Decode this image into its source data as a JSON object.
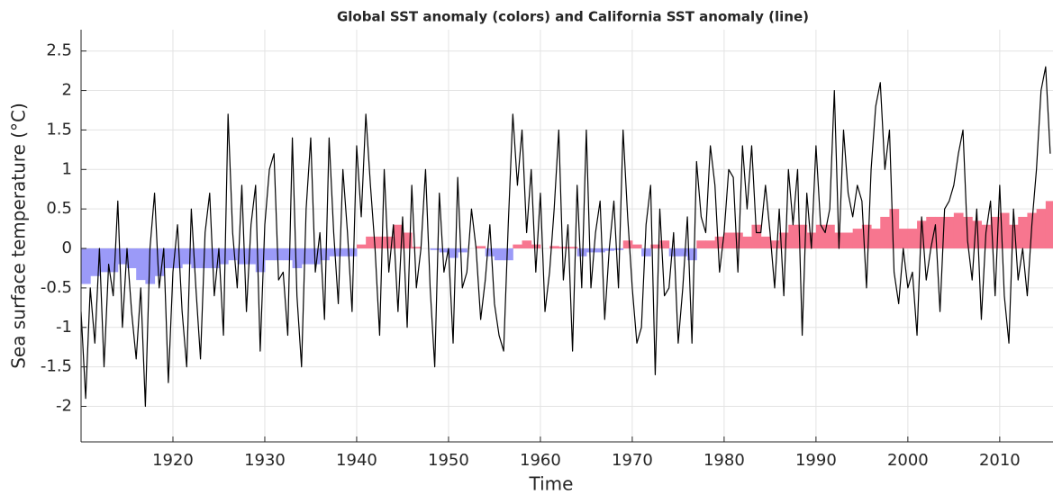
{
  "chart_data": {
    "type": "line",
    "title": "Global SST anomaly (colors) and California SST anomaly (line)",
    "xlabel": "Time",
    "ylabel": "Sea surface temperature (°C)",
    "xlim": [
      1910.0,
      2015.8
    ],
    "ylim": [
      -2.45,
      2.77
    ],
    "xticks": [
      1920,
      1930,
      1940,
      1950,
      1960,
      1970,
      1980,
      1990,
      2000,
      2010
    ],
    "yticks": [
      -2,
      -1.5,
      -1,
      -0.5,
      0,
      0.5,
      1,
      1.5,
      2,
      2.5
    ],
    "grid": true,
    "series": [
      {
        "color": "#f7768f",
        "negative_color": "#9b9af8",
        "x": [
          1910,
          1911,
          1912,
          1913,
          1914,
          1915,
          1916,
          1917,
          1918,
          1919,
          1920,
          1921,
          1922,
          1923,
          1924,
          1925,
          1926,
          1927,
          1928,
          1929,
          1930,
          1931,
          1932,
          1933,
          1934,
          1935,
          1936,
          1937,
          1938,
          1939,
          1940,
          1941,
          1942,
          1943,
          1944,
          1945,
          1946,
          1947,
          1948,
          1949,
          1950,
          1951,
          1952,
          1953,
          1954,
          1955,
          1956,
          1957,
          1958,
          1959,
          1960,
          1961,
          1962,
          1963,
          1964,
          1965,
          1966,
          1967,
          1968,
          1969,
          1970,
          1971,
          1972,
          1973,
          1974,
          1975,
          1976,
          1977,
          1978,
          1979,
          1980,
          1981,
          1982,
          1983,
          1984,
          1985,
          1986,
          1987,
          1988,
          1989,
          1990,
          1991,
          1992,
          1993,
          1994,
          1995,
          1996,
          1997,
          1998,
          1999,
          2000,
          2001,
          2002,
          2003,
          2004,
          2005,
          2006,
          2007,
          2008,
          2009,
          2010,
          2011,
          2012,
          2013,
          2014,
          2015
        ],
        "values": [
          -0.45,
          -0.35,
          -0.3,
          -0.3,
          -0.2,
          -0.25,
          -0.4,
          -0.45,
          -0.35,
          -0.25,
          -0.25,
          -0.2,
          -0.25,
          -0.25,
          -0.25,
          -0.2,
          -0.15,
          -0.2,
          -0.2,
          -0.3,
          -0.15,
          -0.15,
          -0.15,
          -0.25,
          -0.2,
          -0.2,
          -0.15,
          -0.1,
          -0.1,
          -0.1,
          0.05,
          0.15,
          0.15,
          0.15,
          0.3,
          0.2,
          0.02,
          0.0,
          -0.02,
          -0.05,
          -0.12,
          -0.05,
          0.0,
          0.03,
          -0.1,
          -0.15,
          -0.15,
          0.05,
          0.1,
          0.05,
          0.0,
          0.03,
          0.02,
          0.02,
          -0.1,
          -0.05,
          -0.05,
          -0.03,
          -0.02,
          0.1,
          0.05,
          -0.1,
          0.05,
          0.1,
          -0.1,
          -0.1,
          -0.15,
          0.1,
          0.1,
          0.15,
          0.2,
          0.2,
          0.15,
          0.3,
          0.15,
          0.1,
          0.2,
          0.3,
          0.3,
          0.2,
          0.3,
          0.3,
          0.2,
          0.2,
          0.25,
          0.3,
          0.25,
          0.4,
          0.5,
          0.25,
          0.25,
          0.35,
          0.4,
          0.4,
          0.4,
          0.45,
          0.4,
          0.35,
          0.3,
          0.4,
          0.45,
          0.3,
          0.4,
          0.45,
          0.5,
          0.6
        ]
      },
      {
        "color": "#000000",
        "x": [
          1910,
          1910.5,
          1911,
          1911.5,
          1912,
          1912.5,
          1913,
          1913.5,
          1914,
          1914.5,
          1915,
          1915.5,
          1916,
          1916.5,
          1917,
          1917.5,
          1918,
          1918.5,
          1919,
          1919.5,
          1920,
          1920.5,
          1921,
          1921.5,
          1922,
          1922.5,
          1923,
          1923.5,
          1924,
          1924.5,
          1925,
          1925.5,
          1926,
          1926.5,
          1927,
          1927.5,
          1928,
          1928.5,
          1929,
          1929.5,
          1930,
          1930.5,
          1931,
          1931.5,
          1932,
          1932.5,
          1933,
          1933.5,
          1934,
          1934.5,
          1935,
          1935.5,
          1936,
          1936.5,
          1937,
          1937.5,
          1938,
          1938.5,
          1939,
          1939.5,
          1940,
          1940.5,
          1941,
          1941.5,
          1942,
          1942.5,
          1943,
          1943.5,
          1944,
          1944.5,
          1945,
          1945.5,
          1946,
          1946.5,
          1947,
          1947.5,
          1948,
          1948.5,
          1949,
          1949.5,
          1950,
          1950.5,
          1951,
          1951.5,
          1952,
          1952.5,
          1953,
          1953.5,
          1954,
          1954.5,
          1955,
          1955.5,
          1956,
          1956.5,
          1957,
          1957.5,
          1958,
          1958.5,
          1959,
          1959.5,
          1960,
          1960.5,
          1961,
          1961.5,
          1962,
          1962.5,
          1963,
          1963.5,
          1964,
          1964.5,
          1965,
          1965.5,
          1966,
          1966.5,
          1967,
          1967.5,
          1968,
          1968.5,
          1969,
          1969.5,
          1970,
          1970.5,
          1971,
          1971.5,
          1972,
          1972.5,
          1973,
          1973.5,
          1974,
          1974.5,
          1975,
          1975.5,
          1976,
          1976.5,
          1977,
          1977.5,
          1978,
          1978.5,
          1979,
          1979.5,
          1980,
          1980.5,
          1981,
          1981.5,
          1982,
          1982.5,
          1983,
          1983.5,
          1984,
          1984.5,
          1985,
          1985.5,
          1986,
          1986.5,
          1987,
          1987.5,
          1988,
          1988.5,
          1989,
          1989.5,
          1990,
          1990.5,
          1991,
          1991.5,
          1992,
          1992.5,
          1993,
          1993.5,
          1994,
          1994.5,
          1995,
          1995.5,
          1996,
          1996.5,
          1997,
          1997.5,
          1998,
          1998.5,
          1999,
          1999.5,
          2000,
          2000.5,
          2001,
          2001.5,
          2002,
          2002.5,
          2003,
          2003.5,
          2004,
          2004.5,
          2005,
          2005.5,
          2006,
          2006.5,
          2007,
          2007.5,
          2008,
          2008.5,
          2009,
          2009.5,
          2010,
          2010.5,
          2011,
          2011.5,
          2012,
          2012.5,
          2013,
          2013.5,
          2014,
          2014.5,
          2015,
          2015.5
        ],
        "values": [
          -0.8,
          -1.9,
          -0.5,
          -1.2,
          0.0,
          -1.5,
          -0.2,
          -0.6,
          0.6,
          -1.0,
          0.0,
          -0.8,
          -1.4,
          -0.5,
          -2.0,
          0.0,
          0.7,
          -0.5,
          0.0,
          -1.7,
          -0.3,
          0.3,
          -0.8,
          -1.5,
          0.5,
          -0.5,
          -1.4,
          0.2,
          0.7,
          -0.6,
          0.0,
          -1.1,
          1.7,
          0.2,
          -0.5,
          0.8,
          -0.8,
          0.3,
          0.8,
          -1.3,
          0.3,
          1.0,
          1.2,
          -0.4,
          -0.3,
          -1.1,
          1.4,
          -0.6,
          -1.5,
          0.5,
          1.4,
          -0.3,
          0.2,
          -0.9,
          1.4,
          0.2,
          -0.7,
          1.0,
          0.2,
          -0.8,
          1.3,
          0.4,
          1.7,
          0.8,
          0.0,
          -1.1,
          1.0,
          -0.3,
          0.3,
          -0.8,
          0.4,
          -1.0,
          0.8,
          -0.5,
          0.0,
          1.0,
          -0.5,
          -1.5,
          0.7,
          -0.3,
          0.0,
          -1.2,
          0.9,
          -0.5,
          -0.3,
          0.5,
          0.0,
          -0.9,
          -0.4,
          0.3,
          -0.7,
          -1.1,
          -1.3,
          0.3,
          1.7,
          0.8,
          1.5,
          0.2,
          1.0,
          -0.3,
          0.7,
          -0.8,
          -0.3,
          0.5,
          1.5,
          -0.4,
          0.3,
          -1.3,
          0.8,
          -0.5,
          1.5,
          -0.5,
          0.2,
          0.6,
          -0.9,
          0.0,
          0.6,
          -0.5,
          1.5,
          0.4,
          -0.5,
          -1.2,
          -1.0,
          0.3,
          0.8,
          -1.6,
          0.5,
          -0.6,
          -0.5,
          0.2,
          -1.2,
          -0.5,
          0.4,
          -1.2,
          1.1,
          0.4,
          0.2,
          1.3,
          0.8,
          -0.3,
          0.2,
          1.0,
          0.9,
          -0.3,
          1.3,
          0.5,
          1.3,
          0.2,
          0.2,
          0.8,
          0.2,
          -0.5,
          0.5,
          -0.6,
          1.0,
          0.3,
          1.0,
          -1.1,
          0.7,
          0.0,
          1.3,
          0.3,
          0.2,
          0.5,
          2.0,
          0.0,
          1.5,
          0.7,
          0.4,
          0.8,
          0.6,
          -0.5,
          1.0,
          1.8,
          2.1,
          1.0,
          1.5,
          -0.3,
          -0.7,
          0.0,
          -0.5,
          -0.3,
          -1.1,
          0.4,
          -0.4,
          0.0,
          0.3,
          -0.8,
          0.5,
          0.6,
          0.8,
          1.2,
          1.5,
          0.1,
          -0.4,
          0.5,
          -0.9,
          0.2,
          0.6,
          -0.6,
          0.8,
          -0.6,
          -1.2,
          0.5,
          -0.4,
          0.0,
          -0.6,
          0.3,
          1.0,
          2.0,
          2.3,
          1.2
        ]
      }
    ]
  }
}
